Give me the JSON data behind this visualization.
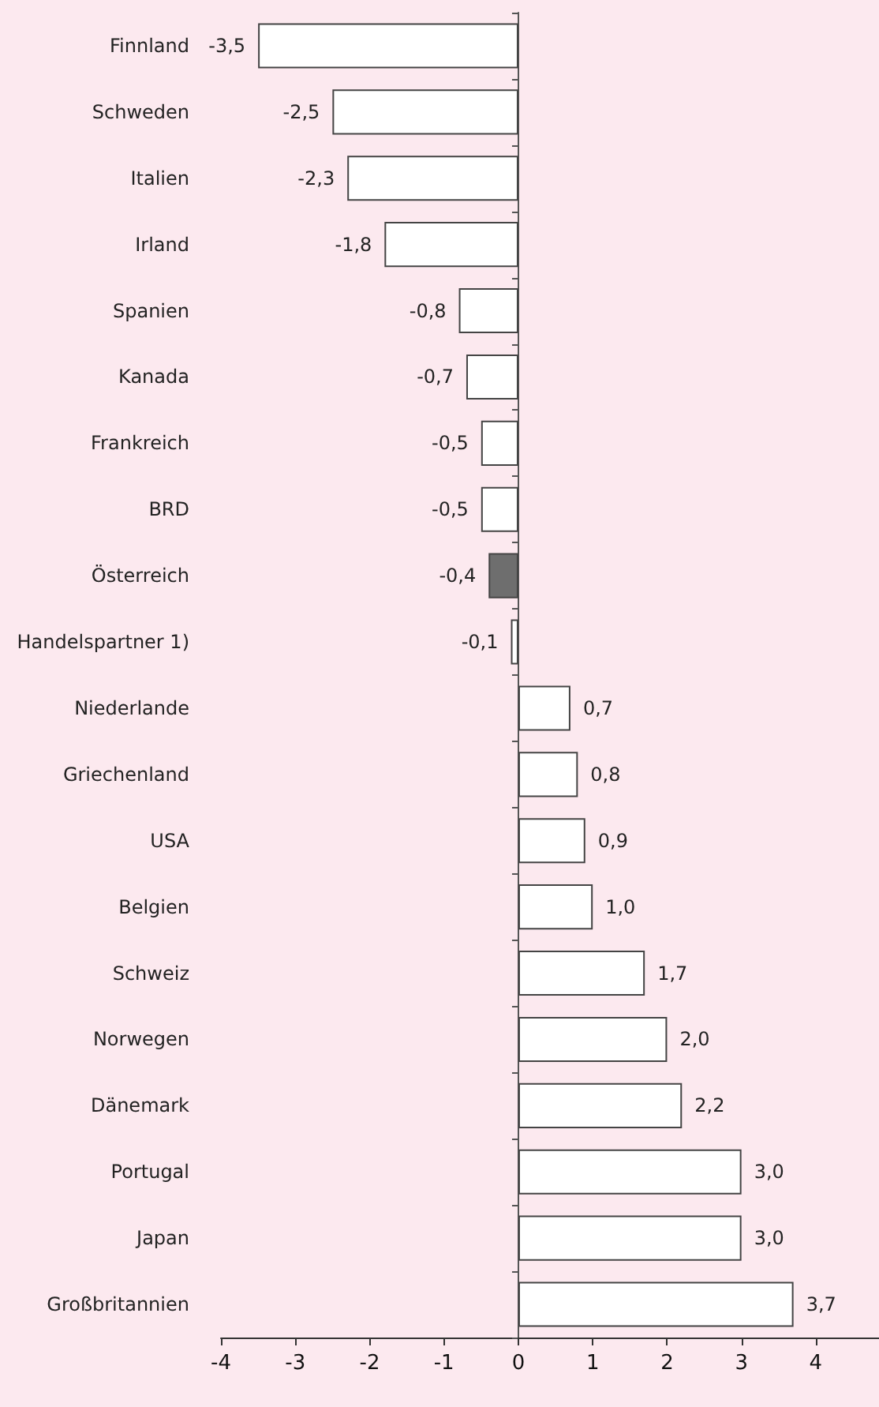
{
  "chart_data": {
    "type": "bar",
    "orientation": "horizontal",
    "categories": [
      "Finnland",
      "Schweden",
      "Italien",
      "Irland",
      "Spanien",
      "Kanada",
      "Frankreich",
      "BRD",
      "Österreich",
      "Handelspartner 1)",
      "Niederlande",
      "Griechenland",
      "USA",
      "Belgien",
      "Schweiz",
      "Norwegen",
      "Dänemark",
      "Portugal",
      "Japan",
      "Großbritannien"
    ],
    "values": [
      -3.5,
      -2.5,
      -2.3,
      -1.8,
      -0.8,
      -0.7,
      -0.5,
      -0.5,
      -0.4,
      -0.1,
      0.7,
      0.8,
      0.9,
      1.0,
      1.7,
      2.0,
      2.2,
      3.0,
      3.0,
      3.7
    ],
    "value_labels": [
      "-3,5",
      "-2,5",
      "-2,3",
      "-1,8",
      "-0,8",
      "-0,7",
      "-0,5",
      "-0,5",
      "-0,4",
      "-0,1",
      "0,7",
      "0,8",
      "0,9",
      "1,0",
      "1,7",
      "2,0",
      "2,2",
      "3,0",
      "3,0",
      "3,7"
    ],
    "colors": [
      "#ffffff",
      "#ffffff",
      "#ffffff",
      "#ffffff",
      "#ffffff",
      "#ffffff",
      "#ffffff",
      "#ffffff",
      "#6e6e6e",
      "#ffffff",
      "#ffffff",
      "#ffffff",
      "#ffffff",
      "#ffffff",
      "#ffffff",
      "#ffffff",
      "#ffffff",
      "#ffffff",
      "#ffffff",
      "#ffffff"
    ],
    "xlim": [
      -4,
      4.85
    ],
    "xticks": [
      -4,
      -3,
      -2,
      -1,
      0,
      1,
      2,
      3,
      4
    ]
  }
}
